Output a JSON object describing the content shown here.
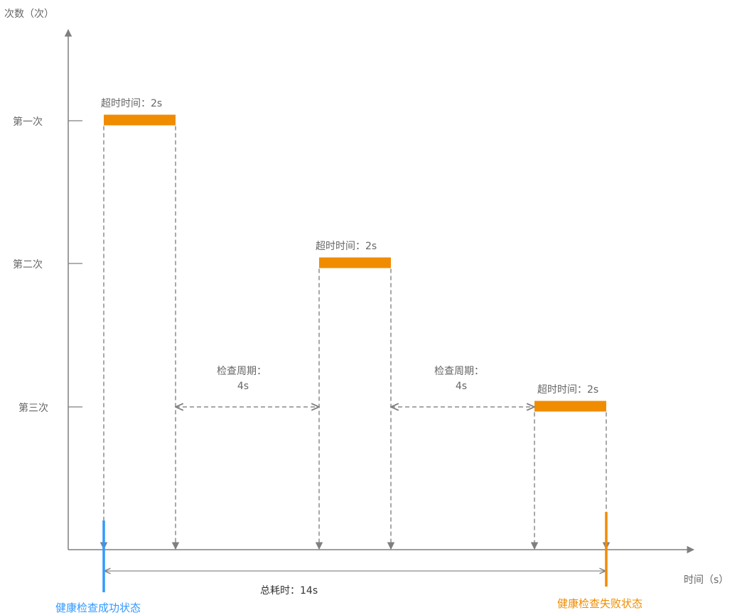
{
  "y_axis_label": "次数（次）",
  "x_axis_label": "时间（s）",
  "rows": [
    {
      "label": "第一次",
      "timeout_label": "超时时间：2s",
      "start_s": 0
    },
    {
      "label": "第二次",
      "timeout_label": "超时时间：2s",
      "start_s": 6
    },
    {
      "label": "第三次",
      "timeout_label": "超时时间：2s",
      "start_s": 12
    }
  ],
  "timeout_s": 2,
  "period_s": 4,
  "periods": [
    {
      "line1": "检查周期：",
      "line2": "4s"
    },
    {
      "line1": "检查周期：",
      "line2": "4s"
    }
  ],
  "total_label": "总耗时：14s",
  "total_s": 14,
  "status_success": "健康检查成功状态",
  "status_fail": "健康检查失败状态",
  "colors": {
    "bar": "#f08c00",
    "success": "#3399ff",
    "fail": "#f08c00",
    "axis": "#7f7f7f"
  }
}
